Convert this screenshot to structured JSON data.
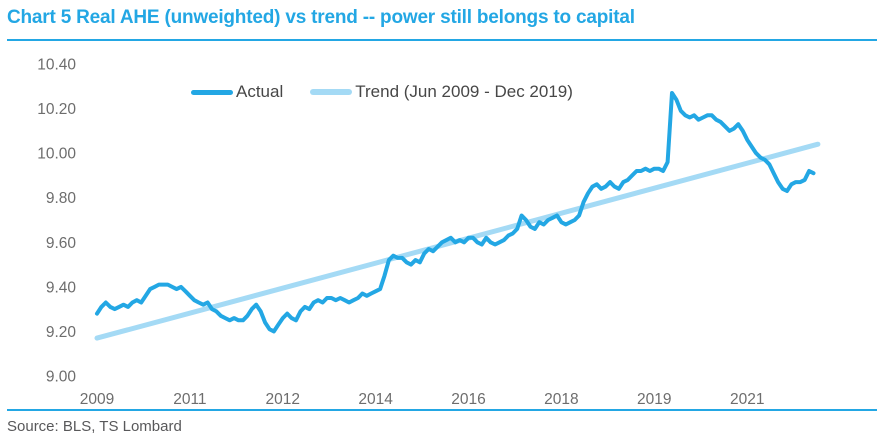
{
  "page": {
    "source_note": "Source: BLS, TS Lombard"
  },
  "colors": {
    "accent": "#23a7e4",
    "trend": "#a4daf5",
    "axis_text": "#6d6d6d",
    "legend_text": "#474747",
    "source_text": "#58585a"
  },
  "chart_data": {
    "type": "line",
    "title": "Chart 5 Real AHE (unweighted) vs trend -- power still belongs to capital",
    "grid": false,
    "legend_position": "top-center",
    "x_axis": {
      "start": "2009-06",
      "end": "2022-12",
      "frequency": "monthly",
      "ticks": [
        {
          "label": "2009",
          "month": 0
        },
        {
          "label": "2011",
          "month": 21
        },
        {
          "label": "2012",
          "month": 42
        },
        {
          "label": "2014",
          "month": 63
        },
        {
          "label": "2016",
          "month": 84
        },
        {
          "label": "2018",
          "month": 105
        },
        {
          "label": "2019",
          "month": 126
        },
        {
          "label": "2021",
          "month": 147
        }
      ]
    },
    "y_axis": {
      "min": 9.0,
      "max": 10.4,
      "ticks": [
        10.4,
        10.2,
        10.0,
        9.8,
        9.6,
        9.4,
        9.2,
        9.0
      ]
    },
    "series": [
      {
        "name": "Actual",
        "color": "#23a7e4",
        "start": "2009-06",
        "frequency": "monthly",
        "values": [
          9.28,
          9.31,
          9.33,
          9.31,
          9.3,
          9.31,
          9.32,
          9.31,
          9.33,
          9.34,
          9.33,
          9.36,
          9.39,
          9.4,
          9.41,
          9.41,
          9.41,
          9.4,
          9.39,
          9.4,
          9.38,
          9.36,
          9.34,
          9.33,
          9.32,
          9.33,
          9.3,
          9.29,
          9.27,
          9.26,
          9.25,
          9.26,
          9.25,
          9.25,
          9.27,
          9.3,
          9.32,
          9.29,
          9.24,
          9.21,
          9.2,
          9.23,
          9.26,
          9.28,
          9.26,
          9.25,
          9.29,
          9.31,
          9.3,
          9.33,
          9.34,
          9.33,
          9.35,
          9.35,
          9.34,
          9.35,
          9.34,
          9.33,
          9.34,
          9.35,
          9.37,
          9.36,
          9.37,
          9.38,
          9.39,
          9.45,
          9.52,
          9.54,
          9.53,
          9.53,
          9.51,
          9.5,
          9.52,
          9.51,
          9.55,
          9.57,
          9.56,
          9.58,
          9.6,
          9.61,
          9.62,
          9.6,
          9.61,
          9.6,
          9.62,
          9.62,
          9.6,
          9.59,
          9.62,
          9.6,
          9.59,
          9.6,
          9.61,
          9.63,
          9.64,
          9.66,
          9.72,
          9.7,
          9.67,
          9.66,
          9.69,
          9.68,
          9.7,
          9.71,
          9.72,
          9.69,
          9.68,
          9.69,
          9.7,
          9.72,
          9.78,
          9.82,
          9.85,
          9.86,
          9.84,
          9.85,
          9.87,
          9.85,
          9.84,
          9.87,
          9.88,
          9.9,
          9.92,
          9.92,
          9.93,
          9.92,
          9.93,
          9.93,
          9.92,
          9.96,
          10.27,
          10.24,
          10.19,
          10.17,
          10.16,
          10.17,
          10.15,
          10.16,
          10.17,
          10.17,
          10.15,
          10.14,
          10.12,
          10.1,
          10.11,
          10.13,
          10.1,
          10.06,
          10.03,
          10.0,
          9.98,
          9.97,
          9.95,
          9.91,
          9.87,
          9.84,
          9.83,
          9.86,
          9.87,
          9.87,
          9.88,
          9.92,
          9.91
        ]
      },
      {
        "name": "Trend (Jun 2009 - Dec 2019)",
        "color": "#a4daf5",
        "line": {
          "start_month": 0,
          "start_value": 9.17,
          "end_month": 163,
          "end_value": 10.04
        }
      }
    ]
  }
}
